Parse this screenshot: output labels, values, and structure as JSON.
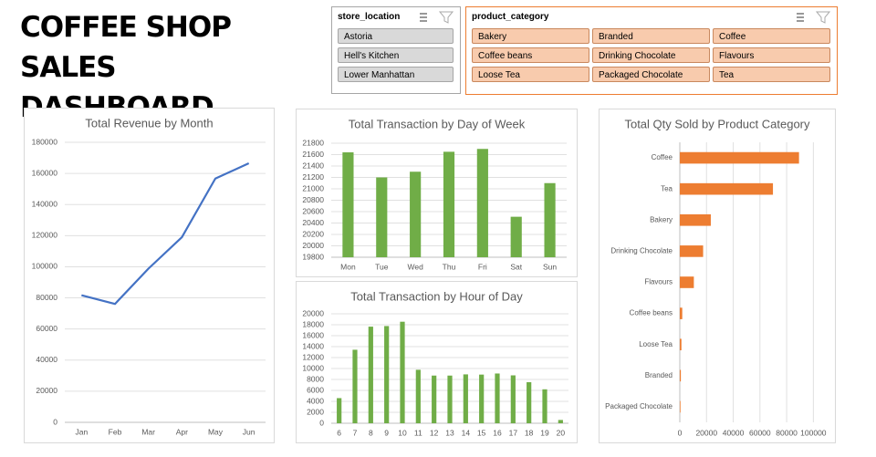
{
  "header": {
    "title": "COFFEE SHOP SALES DASHBOARD"
  },
  "slicers": [
    {
      "header": "store_location",
      "items": [
        "Astoria",
        "Hell's Kitchen",
        "Lower Manhattan"
      ]
    },
    {
      "header": "product_category",
      "items": [
        "Bakery",
        "Branded",
        "Coffee",
        "Coffee beans",
        "Drinking Chocolate",
        "Flavours",
        "Loose Tea",
        "Packaged Chocolate",
        "Tea"
      ]
    }
  ],
  "chart_data": [
    {
      "type": "line",
      "title": "Total Revenue by Month",
      "categories": [
        "Jan",
        "Feb",
        "Mar",
        "Apr",
        "May",
        "Jun"
      ],
      "values": [
        81700,
        76100,
        98800,
        119000,
        156700,
        166500
      ],
      "color": "#4472c4",
      "ylim": [
        0,
        180000
      ],
      "yticks": [
        0,
        20000,
        40000,
        60000,
        80000,
        100000,
        120000,
        140000,
        160000,
        180000
      ],
      "grid": true
    },
    {
      "type": "bar",
      "title": "Total Transaction by Day of Week",
      "categories": [
        "Mon",
        "Tue",
        "Wed",
        "Thu",
        "Fri",
        "Sat",
        "Sun"
      ],
      "values": [
        21640,
        21200,
        21300,
        21650,
        21700,
        20510,
        21100
      ],
      "color": "#70ad47",
      "ylim": [
        19800,
        21800
      ],
      "yticks": [
        19800,
        20000,
        20200,
        20400,
        20600,
        20800,
        21000,
        21200,
        21400,
        21600,
        21800
      ],
      "grid": true
    },
    {
      "type": "bar",
      "title": "Total Transaction by Hour of Day",
      "categories": [
        "6",
        "7",
        "8",
        "9",
        "10",
        "11",
        "12",
        "13",
        "14",
        "15",
        "16",
        "17",
        "18",
        "19",
        "20"
      ],
      "values": [
        4590,
        13430,
        17650,
        17760,
        18550,
        9770,
        8710,
        8710,
        8930,
        8890,
        9090,
        8750,
        7500,
        6200,
        600
      ],
      "color": "#70ad47",
      "ylim": [
        0,
        20000
      ],
      "yticks": [
        0,
        2000,
        4000,
        6000,
        8000,
        10000,
        12000,
        14000,
        16000,
        18000,
        20000
      ],
      "grid": true
    },
    {
      "type": "barh",
      "title": "Total Qty Sold by Product Category",
      "categories": [
        "Coffee",
        "Tea",
        "Bakery",
        "Drinking Chocolate",
        "Flavours",
        "Coffee beans",
        "Loose Tea",
        "Branded",
        "Packaged Chocolate"
      ],
      "values": [
        89250,
        69740,
        23210,
        17460,
        10510,
        1830,
        1210,
        780,
        490
      ],
      "color": "#ed7d31",
      "xlim": [
        0,
        110000
      ],
      "xticks": [
        0,
        20000,
        40000,
        60000,
        80000,
        100000
      ],
      "grid": true
    }
  ]
}
